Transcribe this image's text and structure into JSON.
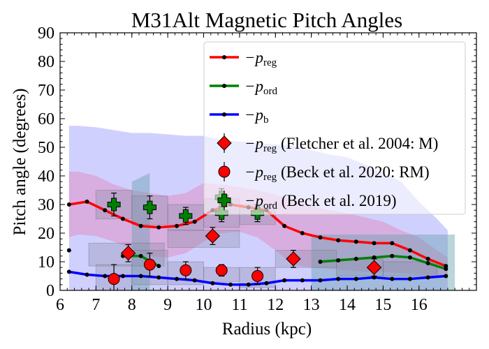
{
  "chart_data": {
    "type": "line",
    "title": "M31Alt Magnetic Pitch Angles",
    "xlabel": "Radius (kpc)",
    "ylabel": "Pitch angle (degrees)",
    "xlim": [
      6.0,
      17.6
    ],
    "ylim": [
      0,
      90
    ],
    "xticks": [
      6,
      7,
      8,
      9,
      10,
      11,
      12,
      13,
      14,
      15,
      16
    ],
    "yticks": [
      0,
      10,
      20,
      30,
      40,
      50,
      60,
      70,
      80,
      90
    ],
    "grid": false,
    "legend_position": "upper-right",
    "bands": [
      {
        "name": "reg",
        "color": "#8a8aff",
        "x": [
          6.25,
          6.5,
          7.0,
          7.5,
          8.0,
          8.5,
          9.0,
          9.5,
          10.0,
          10.5,
          11.0,
          11.5,
          12.0,
          12.5,
          13.0,
          13.5,
          14.0,
          14.5,
          15.0,
          15.5,
          16.0,
          16.5,
          16.8
        ],
        "upper": [
          57.5,
          57.5,
          57.0,
          56.0,
          55.0,
          55.0,
          54.5,
          54.0,
          54.0,
          52.5,
          52.0,
          51.5,
          51.0,
          50.5,
          49.0,
          47.5,
          46.5,
          44.0,
          41.0,
          38.0,
          31.0,
          25.0,
          21.0
        ],
        "lower": [
          0,
          0,
          0,
          0,
          0,
          0,
          0,
          0,
          0,
          0,
          0,
          0,
          0,
          0,
          0,
          0,
          0,
          0,
          0,
          0,
          0,
          0,
          0
        ]
      },
      {
        "name": "reg-inner",
        "color": "#e07ab0",
        "x": [
          6.25,
          6.5,
          7.0,
          7.5,
          8.0,
          8.5,
          9.0,
          9.5,
          10.0,
          10.5,
          11.0,
          11.5,
          12.0,
          12.5,
          13.0,
          13.5,
          14.0,
          14.5,
          15.0,
          15.5,
          16.0,
          16.5,
          16.8
        ],
        "upper": [
          41.5,
          41.5,
          40.0,
          37.0,
          35.0,
          34.0,
          33.0,
          34.0,
          37.5,
          37.0,
          36.0,
          35.0,
          33.5,
          31.5,
          29.5,
          28.0,
          27.0,
          25.5,
          24.0,
          21.0,
          18.5,
          14.0,
          11.5
        ],
        "lower": [
          18.5,
          19.5,
          19.0,
          17.0,
          14.5,
          12.0,
          11.5,
          13.0,
          17.0,
          20.0,
          20.5,
          18.5,
          14.0,
          9.0,
          8.0,
          7.5,
          7.0,
          6.5,
          6.5,
          6.0,
          5.5,
          5.0,
          4.5
        ]
      }
    ],
    "grey_boxes": [
      {
        "x0": 7.0,
        "x1": 8.0,
        "y0": 25,
        "y1": 35
      },
      {
        "x0": 8.0,
        "x1": 9.0,
        "y0": 23,
        "y1": 33
      },
      {
        "x0": 9.0,
        "x1": 10.0,
        "y0": 21,
        "y1": 30
      },
      {
        "x0": 10.0,
        "x1": 11.0,
        "y0": 22,
        "y1": 32
      },
      {
        "x0": 11.0,
        "x1": 12.0,
        "y0": 23,
        "y1": 30
      },
      {
        "x0": 9.0,
        "x1": 11.0,
        "y0": 15,
        "y1": 21
      },
      {
        "x0": 6.8,
        "x1": 8.9,
        "y0": 8.5,
        "y1": 16.5
      },
      {
        "x0": 7.0,
        "x1": 8.0,
        "y0": -2,
        "y1": 9
      },
      {
        "x0": 8.0,
        "x1": 9.0,
        "y0": 2,
        "y1": 14
      },
      {
        "x0": 9.0,
        "x1": 10.0,
        "y0": 2,
        "y1": 10
      },
      {
        "x0": 10.0,
        "x1": 11.0,
        "y0": 3,
        "y1": 8
      },
      {
        "x0": 11.0,
        "x1": 12.0,
        "y0": 1,
        "y1": 8
      },
      {
        "x0": 12.0,
        "x1": 13.7,
        "y0": 8,
        "y1": 14
      },
      {
        "x0": 13.7,
        "x1": 15.0,
        "y0": 5,
        "y1": 11
      },
      {
        "x0": 15.0,
        "x1": 16.5,
        "y0": 5,
        "y1": 10
      }
    ],
    "teal_boxes": [
      {
        "x0": 8.0,
        "x1": 8.5,
        "y0": 0,
        "y1": 38,
        "slope_top": 41
      },
      {
        "x0": 13.0,
        "x1": 17.0,
        "y0": 0,
        "y1": 19.5
      }
    ],
    "series": [
      {
        "name": "−p_reg",
        "color": "#ff0000",
        "x": [
          6.25,
          6.75,
          7.25,
          7.75,
          8.25,
          8.75,
          9.25,
          9.75,
          10.25,
          10.75,
          11.25,
          11.75,
          12.25,
          12.75,
          13.25,
          13.75,
          14.25,
          14.75,
          15.25,
          15.75,
          16.25,
          16.75
        ],
        "y": [
          30,
          31,
          28,
          25,
          22.5,
          22,
          22.5,
          24,
          28,
          30,
          29,
          28,
          22.5,
          20,
          18.5,
          17.5,
          17,
          16.5,
          16.5,
          14,
          11,
          8.5
        ]
      },
      {
        "name": "−p_ord",
        "color": "#008000",
        "segments": [
          {
            "x": [
              7.75,
              8.25,
              8.75
            ],
            "y": [
              12,
              12,
              8.5
            ]
          },
          {
            "x": [
              13.25,
              13.75,
              14.25,
              14.75,
              15.25,
              15.75,
              16.25,
              16.75
            ],
            "y": [
              10,
              10.5,
              11,
              11.5,
              12,
              11.5,
              9.5,
              7.5
            ]
          }
        ]
      },
      {
        "name": "−p_b",
        "color": "#0000ff",
        "x": [
          6.25,
          6.75,
          7.25,
          7.75,
          8.25,
          8.75,
          9.25,
          9.75,
          10.25,
          10.75,
          11.25,
          11.75,
          12.25,
          12.75,
          13.25,
          13.75,
          14.25,
          14.75,
          15.25,
          15.75,
          16.25,
          16.75
        ],
        "y": [
          6.5,
          5.5,
          5,
          5,
          5,
          4.5,
          4,
          3.5,
          2.5,
          2,
          2,
          2.5,
          3.5,
          3.5,
          3.5,
          4,
          4,
          4.5,
          4,
          4,
          4.5,
          5
        ]
      },
      {
        "name": "extra-point",
        "color": "#000000",
        "x": [
          6.25
        ],
        "y": [
          14
        ]
      }
    ],
    "observations": [
      {
        "name": "−p_reg (Fletcher et al. 2004: M)",
        "marker": "diamond",
        "color": "#ff0000",
        "x": [
          7.9,
          10.25,
          12.5,
          14.75
        ],
        "y": [
          13,
          19,
          11,
          8
        ],
        "err": [
          3,
          3,
          3,
          3
        ]
      },
      {
        "name": "−p_reg (Beck et al. 2020: RM)",
        "marker": "circle",
        "color": "#ff0000",
        "x": [
          7.5,
          8.5,
          9.5,
          10.5,
          11.5
        ],
        "y": [
          4,
          9,
          7,
          7,
          5
        ],
        "err": [
          5,
          4,
          3,
          2,
          3
        ]
      },
      {
        "name": "−p_ord (Beck et al. 2019)",
        "marker": "plus",
        "color": "#008000",
        "x": [
          7.5,
          8.5,
          9.5,
          10.5,
          10.5,
          11.5
        ],
        "y": [
          30,
          29,
          26,
          32.5,
          27,
          27
        ],
        "err": [
          4,
          4,
          3,
          3,
          3,
          3
        ]
      }
    ],
    "legend": [
      {
        "label_prefix": "−p",
        "label_sub": "reg",
        "label_suffix": "",
        "kind": "line",
        "color": "#ff0000"
      },
      {
        "label_prefix": "−p",
        "label_sub": "ord",
        "label_suffix": "",
        "kind": "line",
        "color": "#008000"
      },
      {
        "label_prefix": "−p",
        "label_sub": "b",
        "label_suffix": "",
        "kind": "line",
        "color": "#0000ff"
      },
      {
        "label_prefix": "−p",
        "label_sub": "reg",
        "label_suffix": " (Fletcher et al. 2004: M)",
        "kind": "diamond",
        "color": "#ff0000"
      },
      {
        "label_prefix": "−p",
        "label_sub": "reg",
        "label_suffix": " (Beck et al. 2020: RM)",
        "kind": "circle",
        "color": "#ff0000"
      },
      {
        "label_prefix": "−p",
        "label_sub": "ord",
        "label_suffix": " (Beck et al. 2019)",
        "kind": "plus",
        "color": "#008000"
      }
    ]
  }
}
